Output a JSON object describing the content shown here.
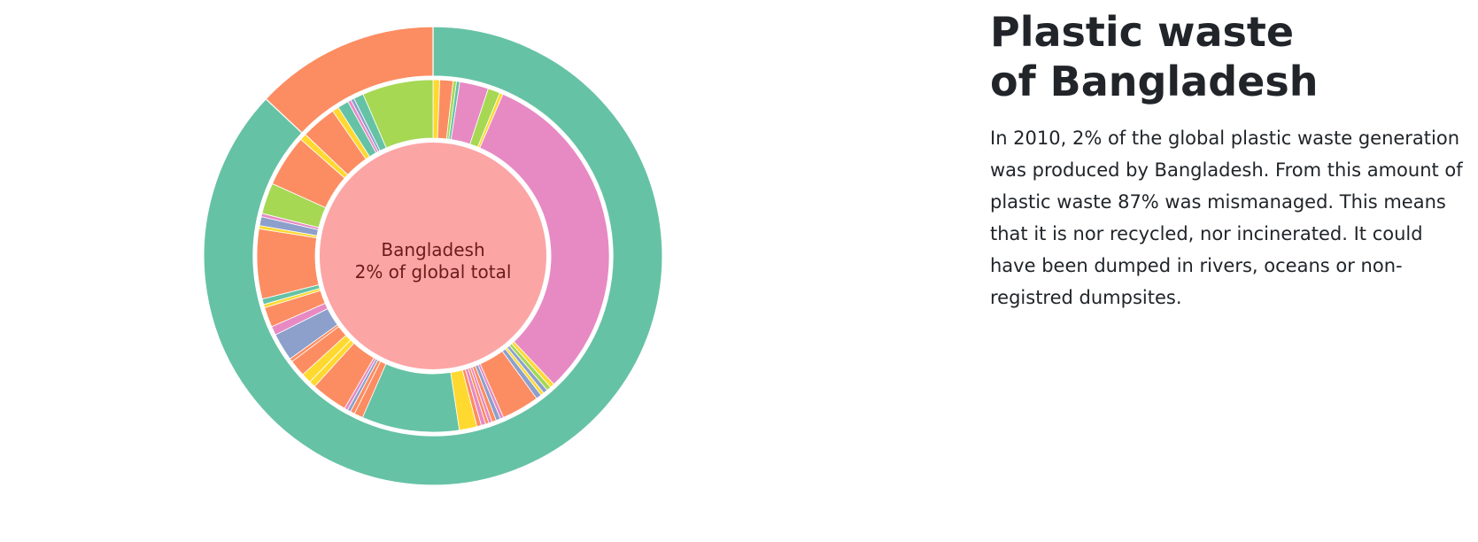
{
  "title": "Plastic waste of Bangladesh",
  "description": "In 2010, 2% of the global plastic waste generation was produced by Bangladesh. From this amount of plastic waste 87% was mismanaged. This means that it is nor recycled, nor incinerated. It could have been dumped in rivers, oceans or non-registred dumpsites.",
  "chart_data": {
    "type": "pie",
    "center_label": {
      "line1": "Bangladesh",
      "line2": "2% of global total"
    },
    "center_color": "#fca5a5",
    "rings": [
      {
        "level": "outer",
        "segments": [
          {
            "value": 87,
            "color": "#66c2a5"
          },
          {
            "value": 13,
            "color": "#fc8d62"
          }
        ]
      },
      {
        "level": "inner",
        "segments": [
          {
            "value": 0.6,
            "color": "#ffd92f"
          },
          {
            "value": 1.2,
            "color": "#fc8d62"
          },
          {
            "value": 0.3,
            "color": "#a6d854"
          },
          {
            "value": 0.3,
            "color": "#66c2a5"
          },
          {
            "value": 2.6,
            "color": "#e78ac3"
          },
          {
            "value": 1.1,
            "color": "#a6d854"
          },
          {
            "value": 0.3,
            "color": "#ffd92f"
          },
          {
            "value": 31.0,
            "color": "#e78ac3"
          },
          {
            "value": 0.4,
            "color": "#ffd92f"
          },
          {
            "value": 0.4,
            "color": "#a6d854"
          },
          {
            "value": 0.4,
            "color": "#8da0cb"
          },
          {
            "value": 0.3,
            "color": "#ffd92f"
          },
          {
            "value": 0.5,
            "color": "#8da0cb"
          },
          {
            "value": 3.4,
            "color": "#fc8d62"
          },
          {
            "value": 0.3,
            "color": "#e78ac3"
          },
          {
            "value": 0.4,
            "color": "#8da0cb"
          },
          {
            "value": 0.4,
            "color": "#fc8d62"
          },
          {
            "value": 0.3,
            "color": "#e78ac3"
          },
          {
            "value": 0.3,
            "color": "#fc8d62"
          },
          {
            "value": 0.4,
            "color": "#e78ac3"
          },
          {
            "value": 0.4,
            "color": "#fc8d62"
          },
          {
            "value": 1.6,
            "color": "#ffd92f"
          },
          {
            "value": 8.8,
            "color": "#66c2a5"
          },
          {
            "value": 0.8,
            "color": "#fc8d62"
          },
          {
            "value": 0.4,
            "color": "#fc8d62"
          },
          {
            "value": 0.3,
            "color": "#8da0cb"
          },
          {
            "value": 0.3,
            "color": "#e78ac3"
          },
          {
            "value": 3.3,
            "color": "#fc8d62"
          },
          {
            "value": 0.6,
            "color": "#ffd92f"
          },
          {
            "value": 0.9,
            "color": "#ffd92f"
          },
          {
            "value": 1.5,
            "color": "#fc8d62"
          },
          {
            "value": 0.3,
            "color": "#fc8d62"
          },
          {
            "value": 2.5,
            "color": "#8da0cb"
          },
          {
            "value": 0.8,
            "color": "#e78ac3"
          },
          {
            "value": 1.8,
            "color": "#fc8d62"
          },
          {
            "value": 0.3,
            "color": "#ffd92f"
          },
          {
            "value": 0.5,
            "color": "#66c2a5"
          },
          {
            "value": 6.3,
            "color": "#fc8d62"
          },
          {
            "value": 0.3,
            "color": "#ffd92f"
          },
          {
            "value": 0.8,
            "color": "#8da0cb"
          },
          {
            "value": 0.3,
            "color": "#e78ac3"
          },
          {
            "value": 2.8,
            "color": "#a6d854"
          },
          {
            "value": 4.7,
            "color": "#fc8d62"
          },
          {
            "value": 0.6,
            "color": "#ffd92f"
          },
          {
            "value": 3.2,
            "color": "#fc8d62"
          },
          {
            "value": 0.6,
            "color": "#ffd92f"
          },
          {
            "value": 1.0,
            "color": "#66c2a5"
          },
          {
            "value": 0.3,
            "color": "#e78ac3"
          },
          {
            "value": 0.3,
            "color": "#8da0cb"
          },
          {
            "value": 0.9,
            "color": "#66c2a5"
          },
          {
            "value": 6.4,
            "color": "#a6d854"
          }
        ]
      }
    ]
  }
}
